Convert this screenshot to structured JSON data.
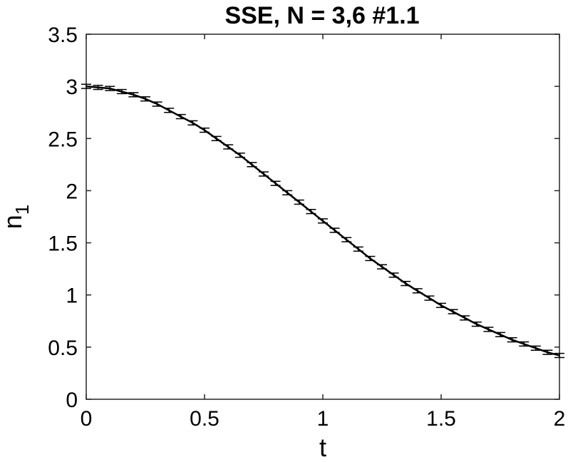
{
  "chart_data": {
    "type": "line",
    "title": "SSE, N = 3,6 #1.1",
    "xlabel": "t",
    "ylabel": "n",
    "ylabel_subscript": "1",
    "xlim": [
      0,
      2
    ],
    "ylim": [
      0,
      3.5
    ],
    "xticks": [
      "0",
      "0.5",
      "1",
      "1.5",
      "2"
    ],
    "yticks": [
      "0",
      "0.5",
      "1",
      "1.5",
      "2",
      "2.5",
      "3",
      "3.5"
    ],
    "grid": false,
    "series": [
      {
        "x": [
          0,
          0.05,
          0.1,
          0.15,
          0.2,
          0.25,
          0.3,
          0.35,
          0.4,
          0.45,
          0.5,
          0.55,
          0.6,
          0.65,
          0.7,
          0.75,
          0.8,
          0.85,
          0.9,
          0.95,
          1.0,
          1.05,
          1.1,
          1.15,
          1.2,
          1.25,
          1.3,
          1.35,
          1.4,
          1.45,
          1.5,
          1.55,
          1.6,
          1.65,
          1.7,
          1.75,
          1.8,
          1.85,
          1.9,
          1.95,
          2.0
        ],
        "y": [
          3.0,
          2.99,
          2.98,
          2.95,
          2.92,
          2.88,
          2.83,
          2.77,
          2.71,
          2.65,
          2.58,
          2.5,
          2.42,
          2.34,
          2.25,
          2.16,
          2.07,
          1.98,
          1.89,
          1.8,
          1.71,
          1.62,
          1.53,
          1.44,
          1.35,
          1.27,
          1.19,
          1.11,
          1.04,
          0.97,
          0.9,
          0.84,
          0.78,
          0.72,
          0.67,
          0.62,
          0.57,
          0.53,
          0.49,
          0.45,
          0.42
        ],
        "error": 0.02,
        "color": "#000000"
      }
    ]
  }
}
